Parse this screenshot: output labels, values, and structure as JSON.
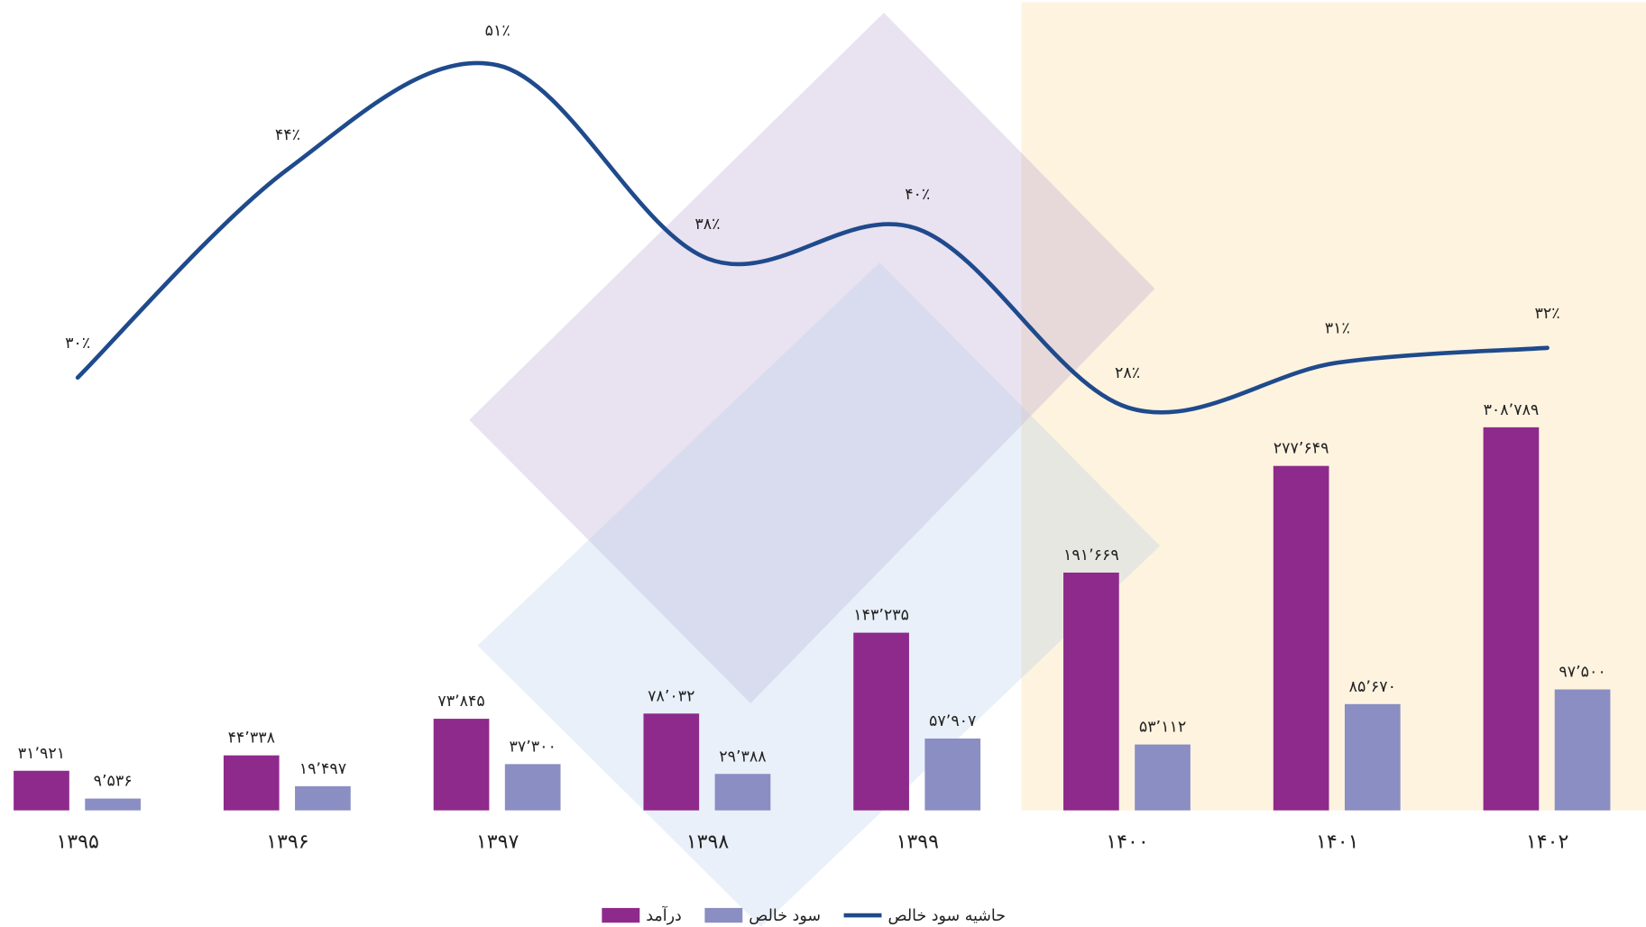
{
  "chart_data": {
    "type": "bar",
    "categories": [
      "۱۳۹۵",
      "۱۳۹۶",
      "۱۳۹۷",
      "۱۳۹۸",
      "۱۳۹۹",
      "۱۴۰۰",
      "۱۴۰۱",
      "۱۴۰۲"
    ],
    "series": [
      {
        "name": "درآمد",
        "color": "#8e2a8b",
        "values": [
          31921,
          44338,
          73845,
          78032,
          143235,
          191669,
          277649,
          308789
        ],
        "value_labels": [
          "۳۱٬۹۲۱",
          "۴۴٬۳۳۸",
          "۷۳٬۸۴۵",
          "۷۸٬۰۳۲",
          "۱۴۳٬۲۳۵",
          "۱۹۱٬۶۶۹",
          "۲۷۷٬۶۴۹",
          "۳۰۸٬۷۸۹"
        ]
      },
      {
        "name": "سود خالص",
        "color": "#8a8ec2",
        "values": [
          9536,
          19497,
          37300,
          29388,
          57907,
          53112,
          85670,
          97500
        ],
        "value_labels": [
          "۹٬۵۳۶",
          "۱۹٬۴۹۷",
          "۳۷٬۳۰۰",
          "۲۹٬۳۸۸",
          "۵۷٬۹۰۷",
          "۵۳٬۱۱۲",
          "۸۵٬۶۷۰",
          "۹۷٬۵۰۰"
        ]
      },
      {
        "name": "حاشیه سود خالص",
        "color": "#1f4a8c",
        "type": "line",
        "axis": "y2",
        "values": [
          30,
          44,
          51,
          38,
          40,
          28,
          31,
          32
        ],
        "value_labels": [
          "۳۰٪",
          "۴۴٪",
          "۵۱٪",
          "۳۸٪",
          "۴۰٪",
          "۲۸٪",
          "۳۱٪",
          "۳۲٪"
        ]
      }
    ]
  }
}
